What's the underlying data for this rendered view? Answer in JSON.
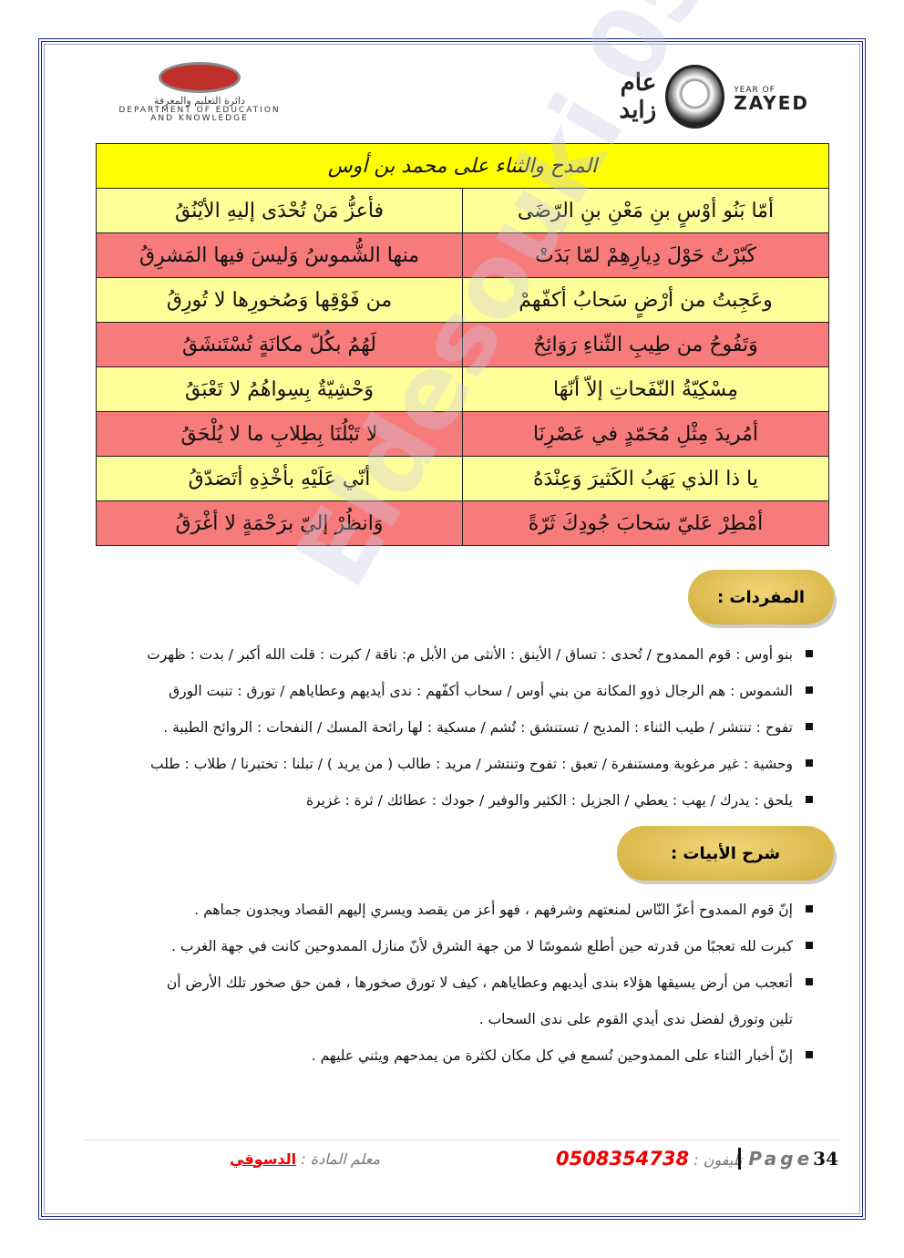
{
  "header": {
    "left_logo": {
      "arabic": "دائرة التعليم والمعرفة",
      "english_1": "DEPARTMENT OF EDUCATION",
      "english_2": "AND KNOWLEDGE"
    },
    "right_logo": {
      "arabic": "عام زايد",
      "english_small": "YEAR OF",
      "english_big": "ZAYED"
    }
  },
  "poem": {
    "title": "المدح والثناء على محمد بن أوس",
    "rows": [
      [
        "أمّا بَنُو أوْسٍ بنِ مَعْنِ بنِ الرّضَى",
        "فأعزُّ مَنْ تُحْدَى إليهِ الأيْنُقُ"
      ],
      [
        "كَبّرْتُ حَوْلَ دِيارِهِمْ لمّا بَدَتْ",
        "منها الشُّموسُ وَليسَ فيها المَشرِقُ"
      ],
      [
        "وعَجِبتُ من أرْضٍ سَحابُ أكفّهمْ",
        "من فَوْقِها وَصُخورِها لا تُورِقُ"
      ],
      [
        "وَتَفُوحُ من طِيبِ الثّناءِ رَوَائِحٌ",
        "لَهُمُ بكُلّ مكانَةٍ تُسْتَنشَقُ"
      ],
      [
        "مِسْكِيّةُ النّفَحاتِ إلاّ أنّهَا",
        "وَحْشِيّةٌ بِسِواهُمُ لا تَعْبَقُ"
      ],
      [
        "أمُريدَ مِثْلِ مُحَمّدٍ في عَصْرِنَا",
        "لا تَبْلُنَا بِطِلابِ ما لا يُلْحَقُ"
      ],
      [
        "يا ذا الذي يَهَبُ الكَثيرَ وَعِنْدَهُ",
        "أنّي عَلَيْهِ بأخْذِهِ أتَصَدّقُ"
      ],
      [
        "أمْطِرْ عَليّ سَحابَ جُودِكَ ثَرّةً",
        "وَانظُرْ إليّ برَحْمَةٍ لا أغْرَقُ"
      ]
    ]
  },
  "vocabulary": {
    "heading": "المفردات :",
    "items": [
      "بنو أوس : قوم الممدوح / تُحدى : تساق / الأينق : الأنثى من الأبل م: ناقة / كبرت : قلت الله أكبر / بدت : ظهرت",
      "الشموس : هم الرجال ذوو المكانة من بني أوس / سحاب أكفّهم : ندى أيديهم وعطاياهم / تورق : تنبت الورق",
      "تفوح : تنتشر / طيب الثناء : المديح / تستنشق : تُشم / مسكية : لها رائحة المسك / النفحات : الروائح الطيبة .",
      "وحشية : غير مرغوبة ومستنفرة / تعبق : تفوح وتنتشر / مريد : طالب ( من يريد ) / تبلنا : تختبرنا / طلاب : طلب",
      "يلحق : يدرك / يهب : يعطي / الجزيل : الكثير والوفير / جودك : عطائك / ثرة : غزيرة"
    ]
  },
  "explanation": {
    "heading": "شرح الأبيات :",
    "items": [
      {
        "text": "إنّ قوم الممدوح أعزّ النّاس لمنعتهم وشرفهم ، فهو أعز من يقصد ويسري إليهم القصاد ويجدون جماهم ."
      },
      {
        "text": "كبرت لله تعجبًا من قدرته حين أطلع شموسًا لا من جهة الشرق لأنّ منازل الممدوحين كانت في جهة الغرب ."
      },
      {
        "text": "أتعجب من أرض يسيقها هؤلاء بندى أيديهم وعطاياهم ، كيف لا تورق صخورها ، فمن حق صخور تلك الأرض أن",
        "cont": "تلين وتورق لفضل ندى أيدي القوم على ندى السحاب ."
      },
      {
        "text": "إنّ أخبار الثناء على الممدوحين تُسمع في كل مكان لكثرة من يمدحهم ويثني عليهم ."
      }
    ]
  },
  "footer": {
    "teacher_label": "معلم المادة :",
    "teacher_name": "الدسوقي",
    "phone_label": "تليفون :",
    "phone": "0508354738",
    "page_label": "Page",
    "page_number": "34"
  },
  "watermark": "Eldesouki 0508354738",
  "colors": {
    "title_bg": "#ffff00",
    "row_light": "#ffff99",
    "row_pink": "#f77b7b",
    "pill": "#e0bf55",
    "accent_red": "#ee0000",
    "frame": "#1a2a8a"
  }
}
